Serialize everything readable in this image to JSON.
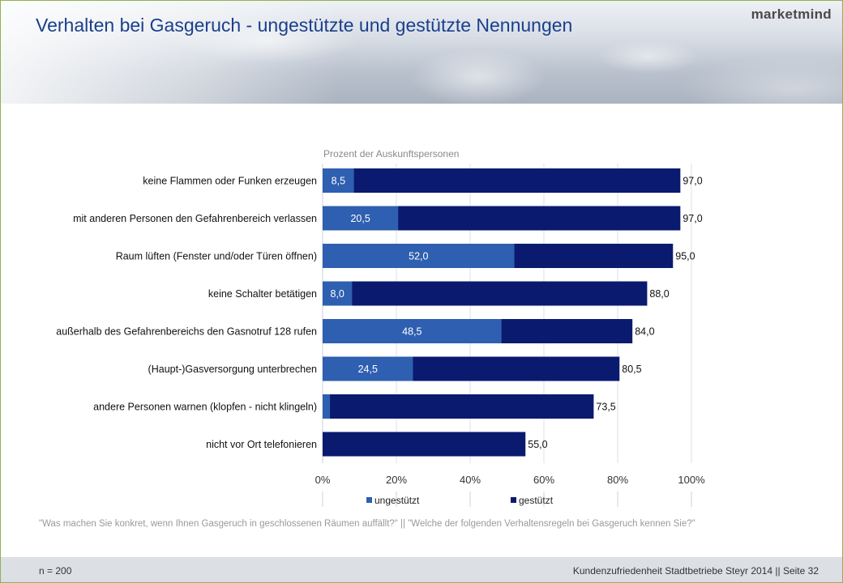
{
  "header": {
    "title": "Verhalten bei Gasgeruch - ungestützte und gestützte Nennungen",
    "brand": "marketmind"
  },
  "chart_data": {
    "type": "bar",
    "orientation": "horizontal",
    "subtitle": "Prozent der Auskunftspersonen",
    "categories": [
      "keine Flammen oder Funken erzeugen",
      "mit anderen Personen den Gefahrenbereich verlassen",
      "Raum lüften (Fenster und/oder Türen öffnen)",
      "keine Schalter betätigen",
      "außerhalb des Gefahrenbereichs den Gasnotruf 128 rufen",
      "(Haupt-)Gasversorgung unterbrechen",
      "andere Personen warnen (klopfen - nicht klingeln)",
      "nicht vor Ort telefonieren"
    ],
    "series": [
      {
        "name": "ungestützt",
        "color": "#2e5fb0",
        "values": [
          8.5,
          20.5,
          52.0,
          8.0,
          48.5,
          24.5,
          2.0,
          0.0
        ],
        "labels": [
          "8,5",
          "20,5",
          "52,0",
          "8,0",
          "48,5",
          "24,5",
          "",
          ""
        ]
      },
      {
        "name": "gestützt",
        "color": "#0a1a6e",
        "values": [
          97.0,
          97.0,
          95.0,
          88.0,
          84.0,
          80.5,
          73.5,
          55.0
        ],
        "labels": [
          "97,0",
          "97,0",
          "95,0",
          "88,0",
          "84,0",
          "80,5",
          "73,5",
          "55,0"
        ]
      }
    ],
    "xlim": [
      0,
      100
    ],
    "xticks": [
      "0%",
      "20%",
      "40%",
      "60%",
      "80%",
      "100%"
    ],
    "grid": true,
    "legend": "bottom"
  },
  "footnote": "\"Was machen Sie konkret, wenn Ihnen Gasgeruch in geschlossenen Räumen auffällt?\" || \"Welche der folgenden Verhaltensregeln bei Gasgeruch kennen Sie?\"",
  "footer": {
    "sample": "n = 200",
    "source": "Kundenzufriedenheit Stadtbetriebe Steyr 2014 || Seite 32"
  }
}
